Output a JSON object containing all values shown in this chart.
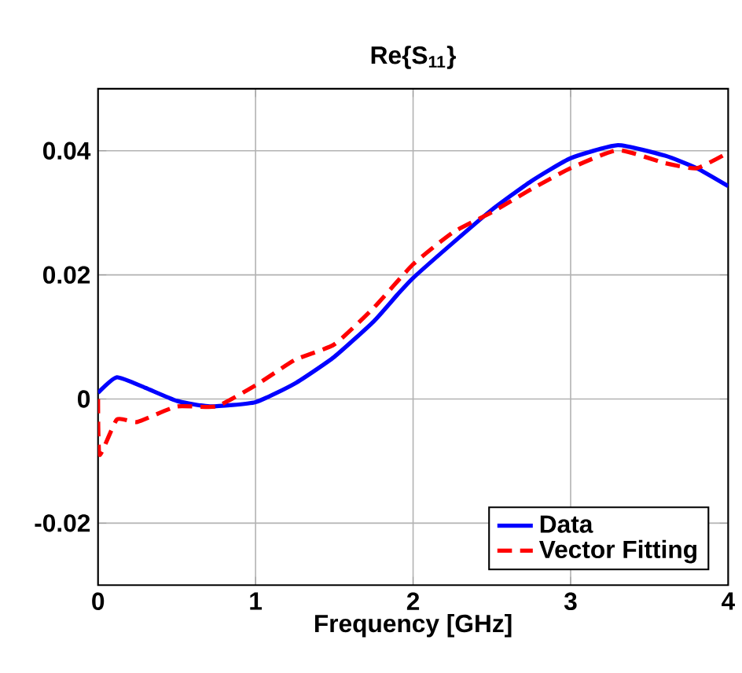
{
  "chart_data": {
    "type": "line",
    "title": "Re{S$_{11}$}",
    "xlabel": "Frequency [GHz]",
    "xlim": [
      0,
      4
    ],
    "ylim": [
      -0.03,
      0.05
    ],
    "xticks": [
      0,
      1,
      2,
      3,
      4
    ],
    "yticks": [
      -0.02,
      0,
      0.02,
      0.04
    ],
    "grid": true,
    "legend": "bottom right",
    "series": [
      {
        "name": "Data",
        "color": "#0000ff",
        "line_style": "solid",
        "x": [
          0,
          0.12,
          0.3,
          0.5,
          0.71,
          1,
          1.25,
          1.5,
          1.75,
          1.9,
          2,
          2.25,
          2.5,
          2.75,
          3,
          3.3,
          3.6,
          3.8,
          4
        ],
        "values": [
          0.001,
          0.0035,
          0.0018,
          -0.0003,
          -0.0012,
          -0.0005,
          0.0025,
          0.0068,
          0.0125,
          0.0168,
          0.0195,
          0.0251,
          0.0305,
          0.0351,
          0.0388,
          0.0409,
          0.0392,
          0.0372,
          0.0343
        ]
      },
      {
        "name": "Vector Fitting",
        "color": "#ff0000",
        "line_style": "dashed",
        "x": [
          0,
          0.01,
          0.12,
          0.25,
          0.5,
          0.75,
          1,
          1.25,
          1.5,
          1.75,
          2,
          2.25,
          2.5,
          2.75,
          3,
          3.3,
          3.6,
          3.8,
          4
        ],
        "values": [
          0,
          -0.009,
          -0.0033,
          -0.0037,
          -0.0012,
          -0.0012,
          0.0022,
          0.0063,
          0.0088,
          0.0147,
          0.0217,
          0.0268,
          0.0301,
          0.0338,
          0.0372,
          0.0401,
          0.038,
          0.0372,
          0.0397
        ]
      }
    ]
  }
}
